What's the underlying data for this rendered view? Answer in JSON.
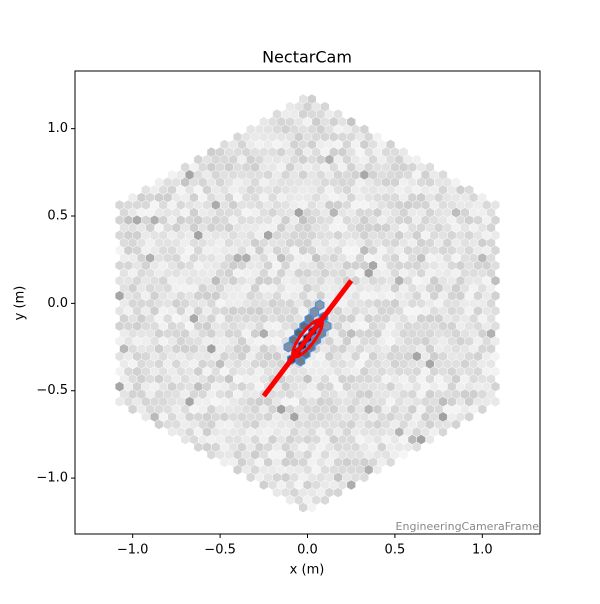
{
  "chart_data": {
    "type": "camera",
    "title": "NectarCam",
    "x_label": "x  (m)",
    "y_label": "y  (m)",
    "annotation": "EngineeringCameraFrame",
    "xlim": [
      -1.33,
      1.33
    ],
    "ylim": [
      -1.32,
      1.33
    ],
    "xticks": [
      {
        "value": -1.0,
        "label": "−1.0"
      },
      {
        "value": -0.5,
        "label": "−0.5"
      },
      {
        "value": 0.0,
        "label": "0.0"
      },
      0.5,
      {
        "value": 1.0,
        "label": "1.0"
      }
    ],
    "yticks": [
      {
        "value": -1.0,
        "label": "−1.0"
      },
      {
        "value": -0.5,
        "label": "−0.5"
      },
      {
        "value": 0.0,
        "label": "0.0"
      },
      0.5,
      {
        "value": 1.0,
        "label": "1.0"
      }
    ],
    "signal_pixels": {
      "x": [
        -0.09,
        -0.06,
        -0.03,
        0.0,
        0.03,
        0.06,
        0.09,
        -0.08,
        -0.05,
        -0.02,
        0.01,
        0.04,
        0.07,
        -0.04,
        -0.01,
        0.02,
        0.05,
        0.08,
        0.11,
        -0.11
      ],
      "y": [
        -0.32,
        -0.28,
        -0.24,
        -0.2,
        -0.16,
        -0.12,
        -0.08,
        -0.21,
        -0.17,
        -0.13,
        -0.09,
        -0.05,
        -0.01,
        -0.33,
        -0.29,
        -0.25,
        -0.21,
        -0.17,
        -0.13,
        -0.25
      ],
      "values": [
        0.75,
        0.9,
        1.0,
        0.95,
        0.9,
        0.8,
        0.6,
        0.5,
        0.6,
        0.55,
        0.45,
        0.35,
        0.3,
        0.45,
        0.55,
        0.5,
        0.45,
        0.4,
        0.3,
        0.35
      ]
    },
    "ellipse": {
      "cog_x": 0.0,
      "cog_y": -0.2,
      "length": 0.13,
      "width": 0.04,
      "psi_deg": 52.9,
      "color": "#ff0000"
    },
    "axis_line": {
      "x": [
        -0.25,
        0.25
      ],
      "y": [
        -0.53,
        0.13
      ],
      "color": "#ff0000"
    },
    "mask_color": "#4a90e2"
  }
}
